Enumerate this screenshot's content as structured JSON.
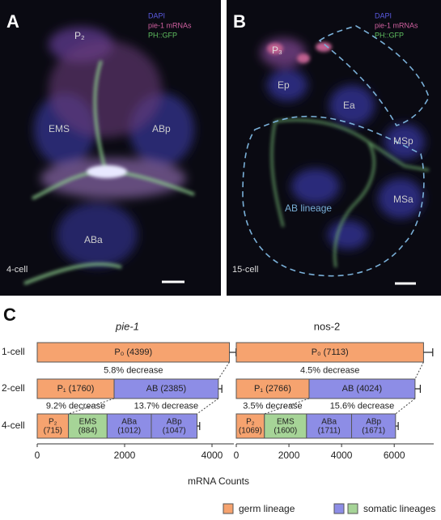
{
  "panels": [
    {
      "letter": "A",
      "channels": [
        "DAPI",
        "pie-1 mRNAs",
        "PH::GFP"
      ],
      "cells": [
        "P₂",
        "EMS",
        "ABp",
        "ABa"
      ],
      "stage": "4-cell"
    },
    {
      "letter": "B",
      "channels": [
        "DAPI",
        "pie-1 mRNAs",
        "PH::GFP"
      ],
      "cells": [
        "P₃",
        "Ep",
        "Ea",
        "MSp",
        "MSa",
        "AB lineage"
      ],
      "stage": "15-cell"
    }
  ],
  "panel_c": "C",
  "chart_data": [
    {
      "type": "stacked-bar",
      "title": "pie-1",
      "title_style": "italic",
      "categories": [
        "1-cell",
        "2-cell",
        "4-cell"
      ],
      "series": [
        {
          "color": "#f6a36f",
          "values": [
            4399,
            1760,
            715
          ],
          "value_labels": [
            "P₀ (4399)",
            "P₁ (1760)",
            "P₂ (715)"
          ]
        },
        {
          "color": "#8d8de6",
          "values": [
            null,
            2385,
            null
          ],
          "value_labels": [
            null,
            "AB (2385)",
            null
          ]
        },
        {
          "color": "#a6d497",
          "values": [
            null,
            null,
            884
          ],
          "value_labels": [
            null,
            null,
            "EMS (884)"
          ]
        },
        {
          "color": "#8d8de6",
          "values": [
            null,
            null,
            1012
          ],
          "value_labels": [
            null,
            null,
            "ABa (1012)"
          ]
        },
        {
          "color": "#8d8de6",
          "values": [
            null,
            null,
            1047
          ],
          "value_labels": [
            null,
            null,
            "ABp (1047)"
          ]
        }
      ],
      "errors": [
        150,
        80,
        60
      ],
      "annotations": [
        "5.8% decrease",
        "9.2% decrease",
        "13.7% decrease"
      ],
      "xlim": [
        0,
        4500
      ],
      "xticks": [
        0,
        2000,
        4000
      ]
    },
    {
      "type": "stacked-bar",
      "title": "nos-2",
      "title_style": "normal",
      "series": [
        {
          "color": "#f6a36f",
          "values": [
            7113,
            2766,
            1069
          ],
          "value_labels": [
            "P₀ (7113)",
            "P₁ (2766)",
            "P₂ (1069)"
          ]
        },
        {
          "color": "#8d8de6",
          "values": [
            null,
            4024,
            null
          ],
          "value_labels": [
            null,
            "AB (4024)",
            null
          ]
        },
        {
          "color": "#a6d497",
          "values": [
            null,
            null,
            1600
          ],
          "value_labels": [
            null,
            null,
            "EMS (1600)"
          ]
        },
        {
          "color": "#8d8de6",
          "values": [
            null,
            null,
            1711
          ],
          "value_labels": [
            null,
            null,
            "ABa (1711)"
          ]
        },
        {
          "color": "#8d8de6",
          "values": [
            null,
            null,
            1671
          ],
          "value_labels": [
            null,
            null,
            "ABp (1671)"
          ]
        }
      ],
      "errors": [
        350,
        200,
        100
      ],
      "annotations": [
        "4.5% decrease",
        "3.5% decrease",
        "15.6% decrease"
      ],
      "xlim": [
        0,
        7500
      ],
      "xticks": [
        0,
        2000,
        4000,
        6000
      ]
    }
  ],
  "xlabel": "mRNA Counts",
  "legend": [
    {
      "label": "germ lineage",
      "colors": [
        "#f6a36f"
      ]
    },
    {
      "label": "somatic lineages",
      "colors": [
        "#8d8de6",
        "#a6d497"
      ]
    }
  ]
}
